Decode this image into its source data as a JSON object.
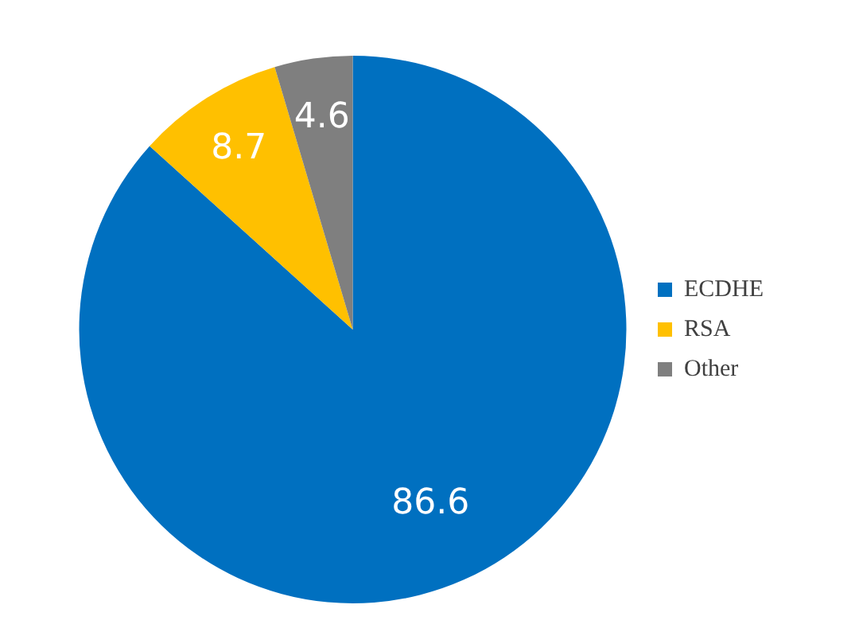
{
  "chart_data": {
    "type": "pie",
    "categories": [
      "ECDHE",
      "RSA",
      "Other"
    ],
    "values": [
      86.6,
      8.7,
      4.6
    ],
    "colors": [
      "#0070c0",
      "#ffc000",
      "#7f7f7f"
    ],
    "data_labels": true,
    "legend": "right"
  }
}
